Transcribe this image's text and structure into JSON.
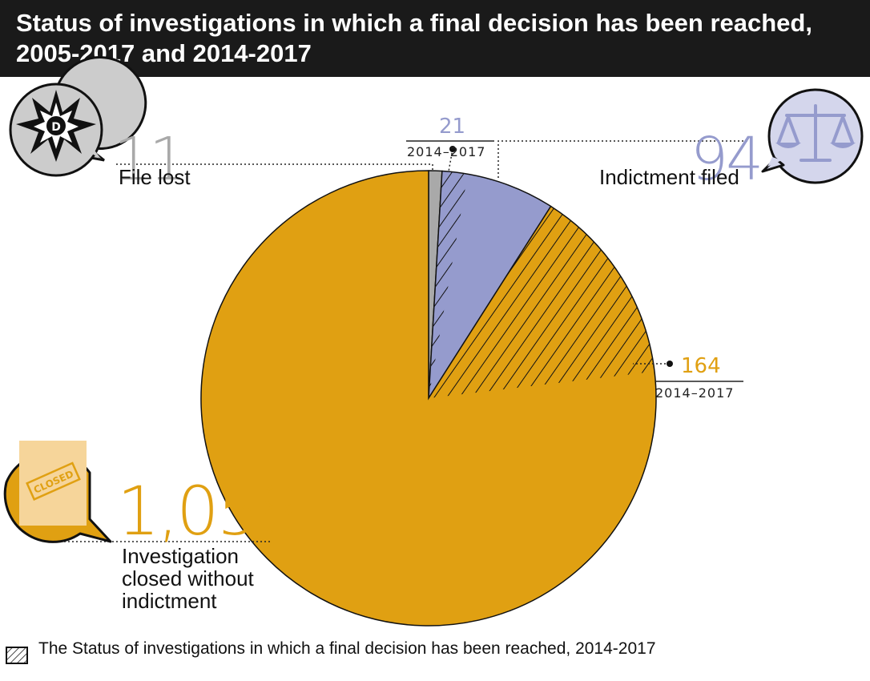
{
  "header": {
    "title": "Status of investigations in which a final decision has been reached, 2005-2017 and 2014-2017"
  },
  "colors": {
    "closed": "#e0a012",
    "indictment": "#959bcd",
    "lost": "#a9a9a9",
    "header_bg": "#1a1a1a"
  },
  "icons": {
    "lost": "star-badge-icon",
    "indictment": "scales-icon",
    "closed": "closed-stamp-icon"
  },
  "stamp_text": "CLOSED",
  "chart_data": {
    "type": "pie",
    "title": "Status of investigations in which a final decision has been reached, 2005-2017 and 2014-2017",
    "slices": [
      {
        "label": "File lost",
        "value": 11,
        "value_text": "11",
        "color": "#a9a9a9"
      },
      {
        "label": "Indictment filed",
        "value": 94,
        "value_text": "94",
        "color": "#959bcd"
      },
      {
        "label": "Investigation closed without indictment",
        "value": 1058,
        "value_text": "1,058",
        "color": "#e0a012"
      }
    ],
    "subsets": [
      {
        "parent": "Indictment filed",
        "value": 21,
        "value_text": "21",
        "period": "2014–2017"
      },
      {
        "parent": "Investigation closed without indictment",
        "value": 164,
        "value_text": "164",
        "period": "2014–2017"
      }
    ],
    "legend": {
      "text": "The Status of investigations in which a final decision has been reached, 2014-2017",
      "position": "bottom-left"
    }
  }
}
